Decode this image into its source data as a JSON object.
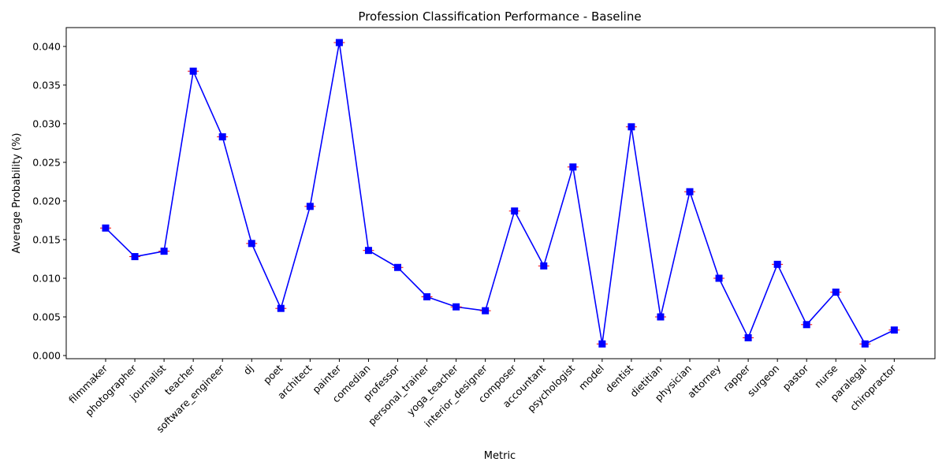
{
  "chart_data": {
    "type": "line",
    "title": "Profession Classification Performance - Baseline",
    "xlabel": "Metric",
    "ylabel": "Average Probability (%)",
    "ylim": [
      0.0,
      0.0425
    ],
    "yticks": [
      "0.000",
      "0.005",
      "0.010",
      "0.015",
      "0.020",
      "0.025",
      "0.030",
      "0.035",
      "0.040"
    ],
    "grid": false,
    "categories": [
      "filmmaker",
      "photographer",
      "journalist",
      "teacher",
      "software_engineer",
      "dj",
      "poet",
      "architect",
      "painter",
      "comedian",
      "professor",
      "personal_trainer",
      "yoga_teacher",
      "interior_designer",
      "composer",
      "accountant",
      "psychologist",
      "model",
      "dentist",
      "dietitian",
      "physician",
      "attorney",
      "rapper",
      "surgeon",
      "pastor",
      "nurse",
      "paralegal",
      "chiropractor"
    ],
    "series": [
      {
        "values": [
          0.0165,
          0.0128,
          0.0135,
          0.0368,
          0.0283,
          0.0145,
          0.0061,
          0.0193,
          0.0405,
          0.0136,
          0.0114,
          0.0076,
          0.0063,
          0.0058,
          0.0187,
          0.0116,
          0.0244,
          0.0015,
          0.0296,
          0.005,
          0.0212,
          0.01,
          0.0023,
          0.0118,
          0.004,
          0.0082,
          0.0015,
          0.0033
        ],
        "color": "#0000ff",
        "marker": "square",
        "error_bar_color": "#ff0000"
      }
    ]
  }
}
